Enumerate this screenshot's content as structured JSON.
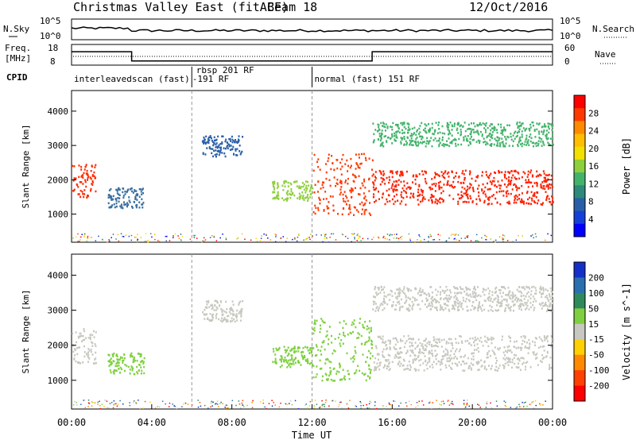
{
  "header": {
    "title_left": "Christmas Valley East (fitACF)",
    "beam": "Beam 18",
    "date": "12/Oct/2016"
  },
  "nsky_panel": {
    "label": "N.Sky",
    "tick_top": "10^5",
    "tick_bottom": "10^0",
    "right_tick_top": "10^5",
    "right_tick_bottom": "10^0",
    "right_label": "N.Search"
  },
  "freq_panel": {
    "label_line1": "Freq.",
    "label_line2": "[MHz]",
    "tick_top": "18",
    "tick_bottom": "8",
    "right_tick_top": "60",
    "right_tick_bottom": "0",
    "right_label": "Nave",
    "freq_steps": [
      {
        "x_start": 0,
        "x_end": 3,
        "value": 14.5
      },
      {
        "x_start": 3,
        "x_end": 15,
        "value": 10.0
      },
      {
        "x_start": 15,
        "x_end": 24,
        "value": 14.5
      }
    ]
  },
  "cpid_row": {
    "label": "CPID",
    "modes": [
      {
        "text": "interleavedscan (fast)",
        "x": 0.0
      },
      {
        "text": "-191 RF",
        "x": 5.9
      },
      {
        "text": "rbsp 201 RF",
        "x": 6.1
      },
      {
        "text": "normal (fast) 151 RF",
        "x": 12.0
      }
    ],
    "boundaries": [
      6.0,
      12.0
    ]
  },
  "chart_data": [
    {
      "type": "heatmap",
      "name": "power",
      "ylabel": "Slant Range [km]",
      "yticks": [
        1000,
        2000,
        3000,
        4000
      ],
      "ylim": [
        180,
        4600
      ],
      "xlim": [
        0,
        24
      ],
      "colorbar_label": "Power [dB]",
      "colorbar_ticks": [
        "28",
        "24",
        "20",
        "16",
        "12",
        "8",
        "4"
      ],
      "colorbar_colors": [
        "#ff0000",
        "#ff3a00",
        "#ff8a00",
        "#ffbe00",
        "#f2e000",
        "#8fcf3c",
        "#43b36b",
        "#2e8a7a",
        "#2a5fa8",
        "#1540d8",
        "#0000ff"
      ],
      "regions": [
        {
          "t0": 0.0,
          "t1": 1.2,
          "r0": 1500,
          "r1": 2500,
          "color": "#ff2a00"
        },
        {
          "t0": 1.8,
          "t1": 3.6,
          "r0": 1200,
          "r1": 1800,
          "color": "#3a6fa0"
        },
        {
          "t0": 6.5,
          "t1": 8.5,
          "r0": 2700,
          "r1": 3300,
          "color": "#2a5fa8"
        },
        {
          "t0": 10.0,
          "t1": 12.0,
          "r0": 1400,
          "r1": 2000,
          "color": "#8fcf3c"
        },
        {
          "t0": 12.0,
          "t1": 15.0,
          "r0": 1000,
          "r1": 2800,
          "color": "#ff3a00"
        },
        {
          "t0": 15.0,
          "t1": 24.0,
          "r0": 1300,
          "r1": 2300,
          "color": "#ff2000"
        },
        {
          "t0": 15.0,
          "t1": 24.0,
          "r0": 3000,
          "r1": 3700,
          "color": "#43b36b"
        }
      ]
    },
    {
      "type": "heatmap",
      "name": "velocity",
      "ylabel": "Slant Range [km]",
      "yticks": [
        1000,
        2000,
        3000,
        4000
      ],
      "ylim": [
        180,
        4600
      ],
      "xlim": [
        0,
        24
      ],
      "xticks": [
        "00:00",
        "04:00",
        "08:00",
        "12:00",
        "16:00",
        "20:00",
        "00:00"
      ],
      "xlabel": "Time UT",
      "colorbar_label": "Velocity [m s^-1]",
      "colorbar_ticks": [
        "200",
        "100",
        "50",
        "15",
        "-15",
        "-50",
        "-100",
        "-200"
      ],
      "colorbar_colors": [
        "#1530c8",
        "#2a6fb0",
        "#2e8a5a",
        "#7fd040",
        "#c8c8c0",
        "#ffd000",
        "#ff8a00",
        "#ff4000",
        "#ff0000"
      ],
      "regions": [
        {
          "t0": 0.0,
          "t1": 1.2,
          "r0": 1500,
          "r1": 2500,
          "color": "#c8c8c0"
        },
        {
          "t0": 1.8,
          "t1": 3.6,
          "r0": 1200,
          "r1": 1800,
          "color": "#7fd040"
        },
        {
          "t0": 6.5,
          "t1": 8.5,
          "r0": 2700,
          "r1": 3300,
          "color": "#c8c8c0"
        },
        {
          "t0": 10.0,
          "t1": 12.0,
          "r0": 1400,
          "r1": 2000,
          "color": "#7fd040"
        },
        {
          "t0": 12.0,
          "t1": 15.0,
          "r0": 1000,
          "r1": 2800,
          "color": "#7fd040"
        },
        {
          "t0": 15.0,
          "t1": 24.0,
          "r0": 1300,
          "r1": 2300,
          "color": "#c8c8c0"
        },
        {
          "t0": 15.0,
          "t1": 24.0,
          "r0": 3000,
          "r1": 3700,
          "color": "#c8c8c0"
        }
      ]
    }
  ]
}
